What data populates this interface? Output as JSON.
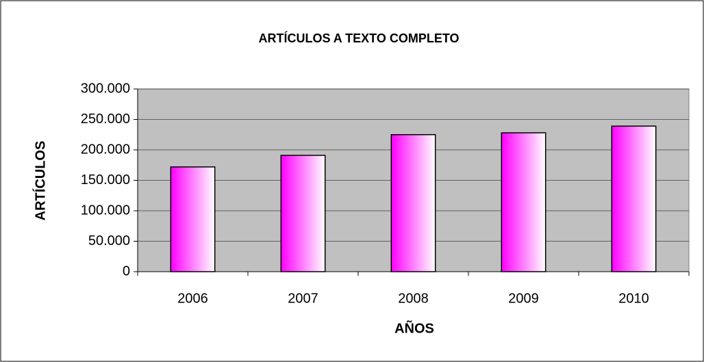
{
  "chart_data": {
    "type": "bar",
    "title": "ARTÍCULOS A TEXTO COMPLETO",
    "x_label": "AÑOS",
    "y_label": "ARTÍCULOS",
    "categories": [
      "2006",
      "2007",
      "2008",
      "2009",
      "2010"
    ],
    "values": [
      172000,
      191000,
      225000,
      228000,
      239000
    ],
    "color": "#ff00ff",
    "ylim": [
      0,
      300000
    ],
    "yticks": [
      0,
      {
        "value": 50000,
        "label": "50.000"
      },
      {
        "value": 100000,
        "label": "100.000"
      },
      {
        "value": 150000,
        "label": "150.000"
      },
      {
        "value": 200000,
        "label": "200.000"
      },
      {
        "value": 250000,
        "label": "250.000"
      },
      {
        "value": 300000,
        "label": "300.000"
      }
    ],
    "grid": true
  }
}
